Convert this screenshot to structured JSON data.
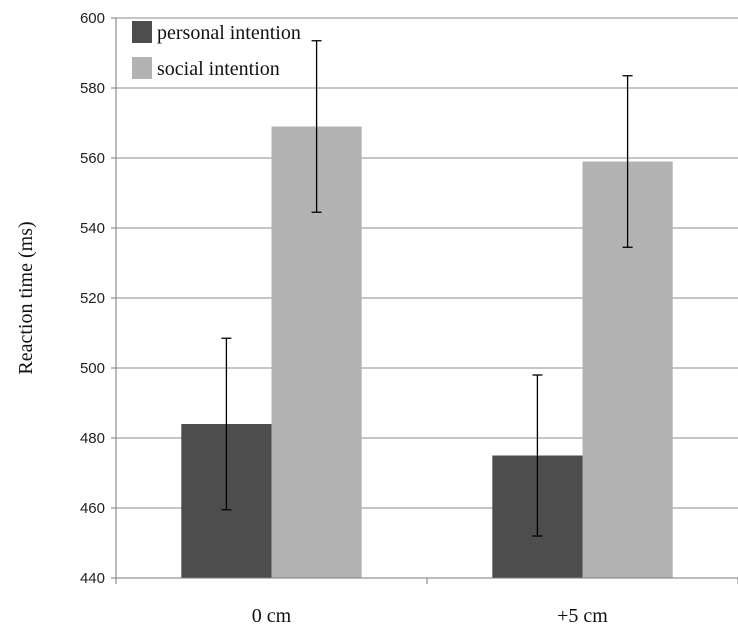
{
  "chart_data": {
    "type": "bar",
    "title": "",
    "xlabel": "",
    "ylabel": "Reaction time (ms)",
    "categories": [
      "0 cm",
      "+5 cm"
    ],
    "series": [
      {
        "name": "personal intention",
        "color": "#4d4d4d",
        "values": [
          484,
          475
        ],
        "error": [
          24.5,
          23
        ]
      },
      {
        "name": "social intention",
        "color": "#b3b3b3",
        "values": [
          569,
          559
        ],
        "error": [
          24.5,
          24.5
        ]
      }
    ],
    "ylim": [
      440,
      600
    ],
    "yticks": [
      440,
      460,
      480,
      500,
      520,
      540,
      560,
      580,
      600
    ],
    "grid": true,
    "legend_position": "top-left"
  }
}
